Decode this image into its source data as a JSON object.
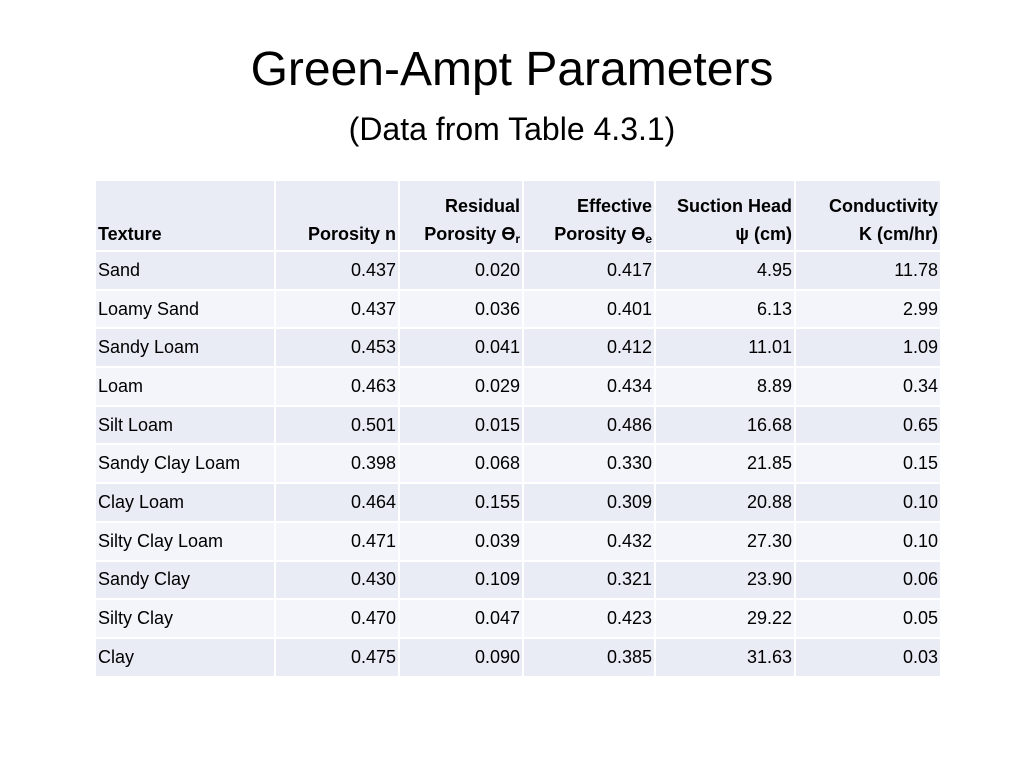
{
  "title": "Green-Ampt Parameters",
  "subtitle": "(Data from Table 4.3.1)",
  "table": {
    "headers": {
      "texture": "Texture",
      "porosity": "Porosity n",
      "residual_line1": "Residual",
      "residual_line2": "Porosity ϴ",
      "residual_sub": "r",
      "effective_line1": "Effective",
      "effective_line2": "Porosity ϴ",
      "effective_sub": "e",
      "suction_line1": "Suction Head",
      "suction_line2": "ψ (cm)",
      "conductivity_line1": "Conductivity",
      "conductivity_line2": "K (cm/hr)"
    },
    "rows": [
      {
        "texture": "Sand",
        "porosity": "0.437",
        "residual": "0.020",
        "effective": "0.417",
        "suction": "4.95",
        "conductivity": "11.78"
      },
      {
        "texture": "Loamy Sand",
        "porosity": "0.437",
        "residual": "0.036",
        "effective": "0.401",
        "suction": "6.13",
        "conductivity": "2.99"
      },
      {
        "texture": "Sandy Loam",
        "porosity": "0.453",
        "residual": "0.041",
        "effective": "0.412",
        "suction": "11.01",
        "conductivity": "1.09"
      },
      {
        "texture": "Loam",
        "porosity": "0.463",
        "residual": "0.029",
        "effective": "0.434",
        "suction": "8.89",
        "conductivity": "0.34"
      },
      {
        "texture": "Silt Loam",
        "porosity": "0.501",
        "residual": "0.015",
        "effective": "0.486",
        "suction": "16.68",
        "conductivity": "0.65"
      },
      {
        "texture": "Sandy Clay Loam",
        "porosity": "0.398",
        "residual": "0.068",
        "effective": "0.330",
        "suction": "21.85",
        "conductivity": "0.15"
      },
      {
        "texture": "Clay Loam",
        "porosity": "0.464",
        "residual": "0.155",
        "effective": "0.309",
        "suction": "20.88",
        "conductivity": "0.10"
      },
      {
        "texture": "Silty Clay Loam",
        "porosity": "0.471",
        "residual": "0.039",
        "effective": "0.432",
        "suction": "27.30",
        "conductivity": "0.10"
      },
      {
        "texture": "Sandy Clay",
        "porosity": "0.430",
        "residual": "0.109",
        "effective": "0.321",
        "suction": "23.90",
        "conductivity": "0.06"
      },
      {
        "texture": "Silty Clay",
        "porosity": "0.470",
        "residual": "0.047",
        "effective": "0.423",
        "suction": "29.22",
        "conductivity": "0.05"
      },
      {
        "texture": "Clay",
        "porosity": "0.475",
        "residual": "0.090",
        "effective": "0.385",
        "suction": "31.63",
        "conductivity": "0.03"
      }
    ]
  },
  "colors": {
    "header_band": "#e9ebf5",
    "row_band_dark": "#e9ebf5",
    "row_band_light": "#f4f5fa"
  }
}
